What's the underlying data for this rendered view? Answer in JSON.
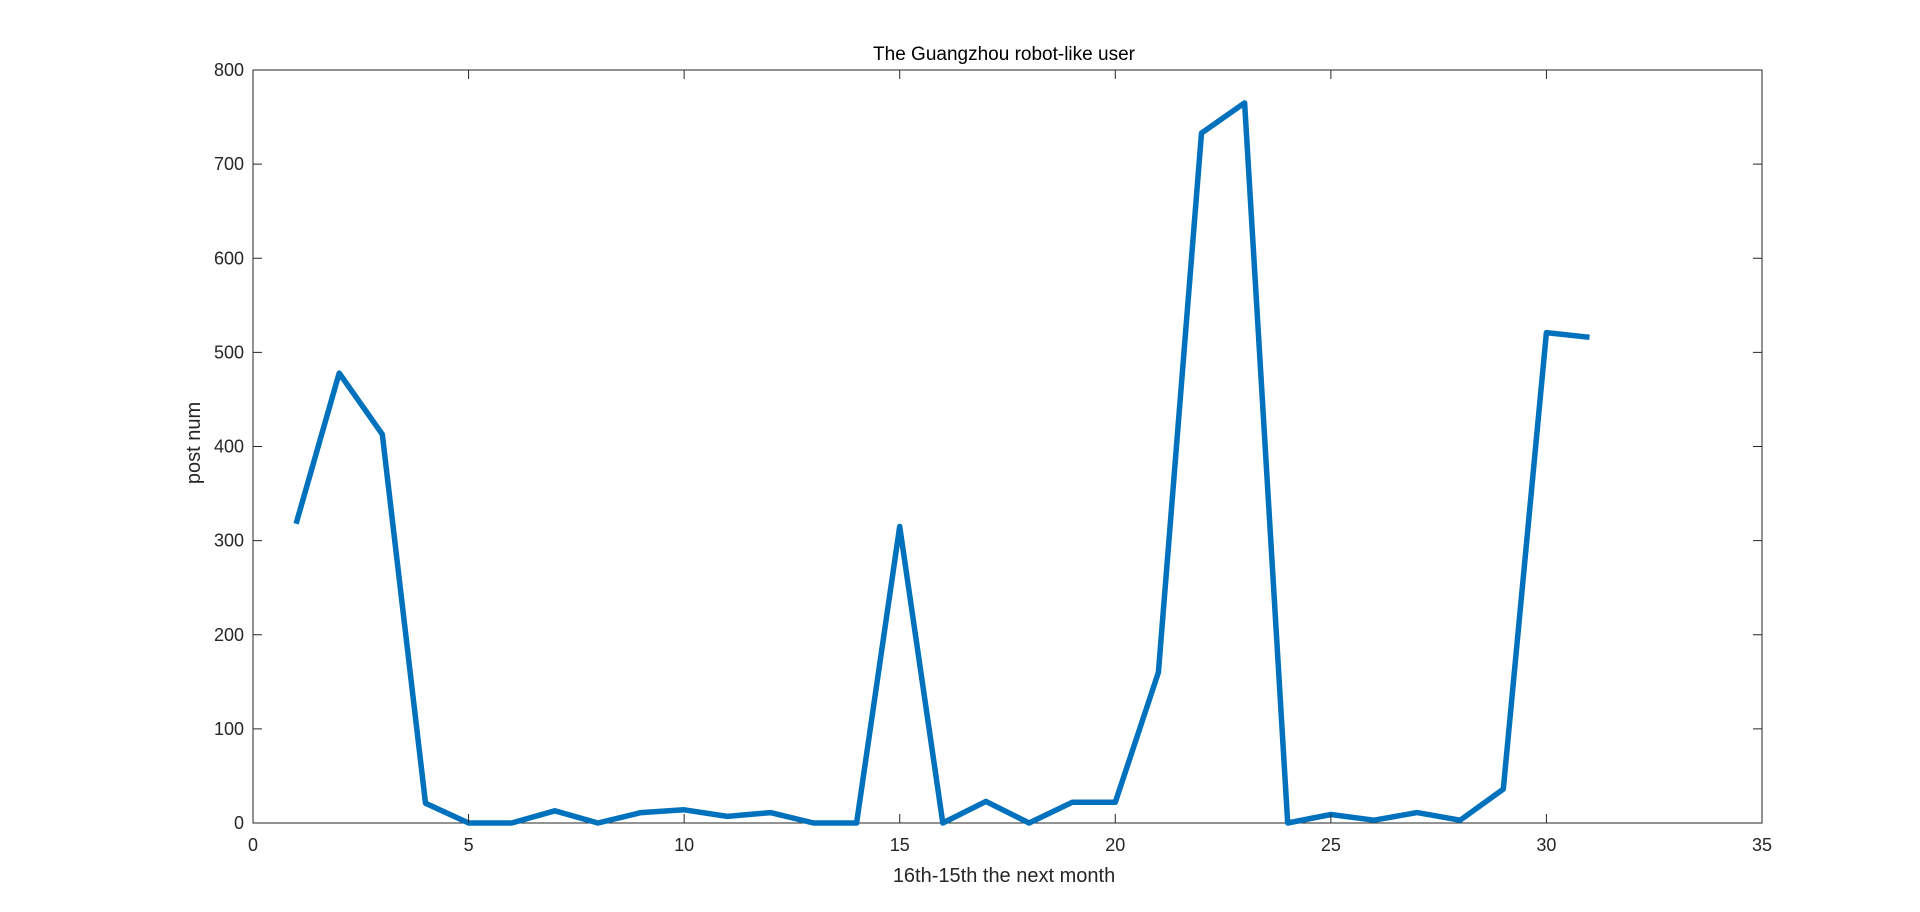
{
  "chart_data": {
    "type": "line",
    "title": "The Guangzhou robot-like user",
    "xlabel": "16th-15th the next month",
    "ylabel": "post num",
    "xlim": [
      0,
      35
    ],
    "ylim": [
      0,
      800
    ],
    "xticks": [
      0,
      5,
      10,
      15,
      20,
      25,
      30,
      35
    ],
    "yticks": [
      0,
      100,
      200,
      300,
      400,
      500,
      600,
      700,
      800
    ],
    "grid": false,
    "legend": "none",
    "series": [
      {
        "color": "#0072BD",
        "x": [
          1,
          2,
          3,
          4,
          5,
          6,
          7,
          8,
          9,
          10,
          11,
          12,
          13,
          14,
          15,
          16,
          17,
          18,
          19,
          20,
          21,
          22,
          23,
          24,
          25,
          26,
          27,
          28,
          29,
          30,
          31
        ],
        "y": [
          318,
          478,
          413,
          21,
          0,
          0,
          13,
          0,
          11,
          14,
          7,
          11,
          0,
          0,
          315,
          0,
          23,
          0,
          22,
          22,
          160,
          733,
          765,
          0,
          9,
          3,
          11,
          3,
          36,
          521,
          516
        ]
      }
    ]
  }
}
